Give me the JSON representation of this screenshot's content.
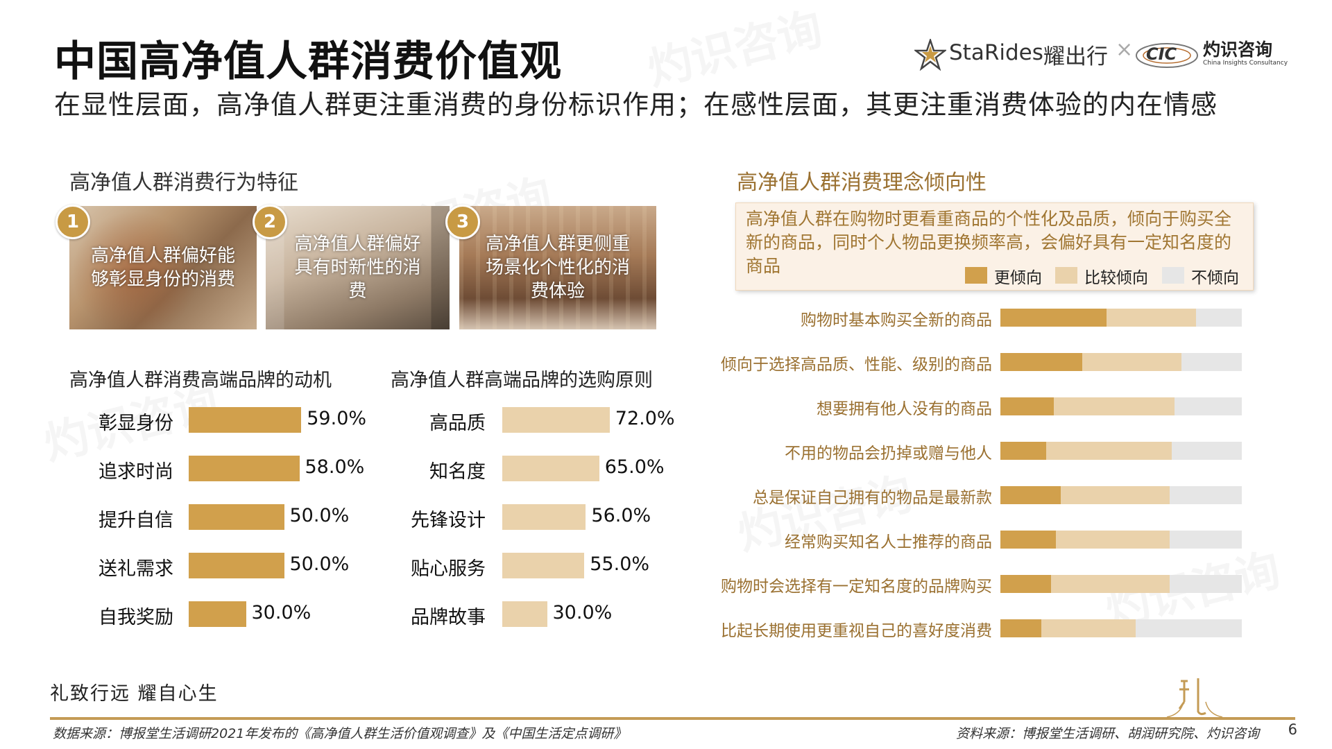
{
  "header": {
    "title": "中国高净值人群消费价值观",
    "subtitle": "在显性层面，高净值人群更注重消费的身份标识作用；在感性层面，其更注重消费体验的内在情感",
    "logo_starides": "StaRides",
    "logo_starides_cn": "耀出行",
    "logo_cic": "CIC",
    "logo_cic_cn": "灼识咨询",
    "logo_cic_en": "China Insights Consultancy"
  },
  "left_section": {
    "title": "高净值人群消费行为特征",
    "features": [
      {
        "num": "1",
        "caption": "高净值人群偏好能够彰显身份的消费"
      },
      {
        "num": "2",
        "caption": "高净值人群偏好具有时新性的消费"
      },
      {
        "num": "3",
        "caption": "高净值人群更侧重场景化个性化的消费体验"
      }
    ]
  },
  "right_section": {
    "title": "高净值人群消费理念倾向性",
    "callout": "高净值人群在购物时更看重商品的个性化及品质，倾向于购买全新的商品，同时个人物品更换频率高，会偏好具有一定知名度的商品",
    "legend": [
      "更倾向",
      "比较倾向",
      "不倾向"
    ]
  },
  "colors": {
    "dark_gold": "#d1a04c",
    "light_gold": "#ead2ab",
    "grey": "#e6e6e6",
    "accent": "#c49b55"
  },
  "chart_data": [
    {
      "type": "bar",
      "orientation": "horizontal",
      "title": "高净值人群消费高端品牌的动机",
      "categories": [
        "彰显身份",
        "追求时尚",
        "提升自信",
        "送礼需求",
        "自我奖励"
      ],
      "values": [
        59.0,
        58.0,
        50.0,
        50.0,
        30.0
      ],
      "value_labels": [
        "59.0%",
        "58.0%",
        "50.0%",
        "50.0%",
        "30.0%"
      ],
      "unit": "%"
    },
    {
      "type": "bar",
      "orientation": "horizontal",
      "title": "高净值人群高端品牌的选购原则",
      "categories": [
        "高品质",
        "知名度",
        "先锋设计",
        "贴心服务",
        "品牌故事"
      ],
      "values": [
        72.0,
        65.0,
        56.0,
        55.0,
        30.0
      ],
      "value_labels": [
        "72.0%",
        "65.0%",
        "56.0%",
        "55.0%",
        "30.0%"
      ],
      "unit": "%"
    },
    {
      "type": "bar",
      "orientation": "horizontal",
      "stacked": true,
      "percent_stacked": true,
      "categories": [
        "购物时基本购买全新的商品",
        "倾向于选择高品质、性能、级别的商品",
        "想要拥有他人没有的商品",
        "不用的物品会扔掉或赠与他人",
        "总是保证自己拥有的物品是最新款",
        "经常购买知名人士推荐的商品",
        "购物时会选择有一定知名度的品牌购买",
        "比起长期使用更重视自己的喜好度消费"
      ],
      "series": [
        {
          "name": "更倾向",
          "values": [
            44,
            34,
            22,
            19,
            25,
            23,
            21,
            17
          ]
        },
        {
          "name": "比较倾向",
          "values": [
            37,
            41,
            50,
            52,
            45,
            47,
            49,
            39
          ]
        },
        {
          "name": "不倾向",
          "values": [
            19,
            25,
            28,
            29,
            30,
            30,
            30,
            44
          ]
        }
      ],
      "legend_position": "top-right"
    }
  ],
  "footer": {
    "slogan": "礼致行远  耀自心生",
    "source_left": "数据来源：博报堂生活调研2021年发布的《高净值人群生活价值观调查》及《中国生活定点调研》",
    "source_right": "资料来源：博报堂生活调研、胡润研究院、灼识咨询",
    "page": "6"
  }
}
